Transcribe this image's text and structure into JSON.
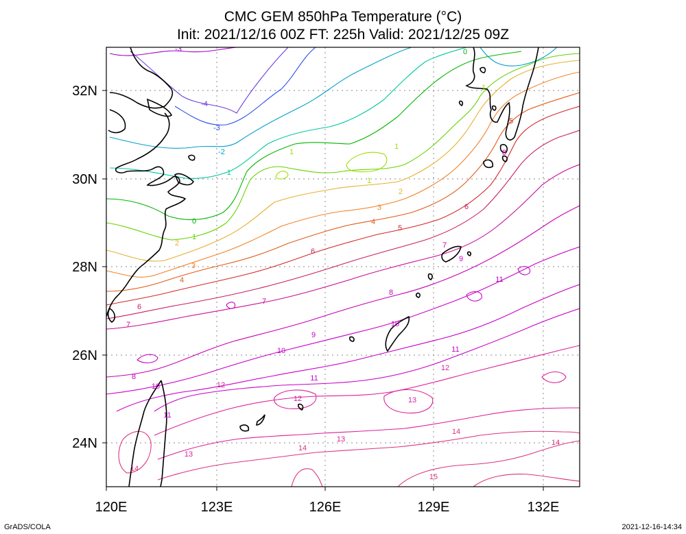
{
  "header": {
    "title": "CMC GEM 850hPa Temperature (°C)",
    "subtitle": "Init: 2021/12/16 00Z  FT: 225h  Valid: 2021/12/25 09Z"
  },
  "footer": {
    "left": "GrADS/COLA",
    "right": "2021-12-16-14:34"
  },
  "axes": {
    "lon_ticks": [
      "120E",
      "123E",
      "126E",
      "129E",
      "132E"
    ],
    "lat_ticks": [
      "32N",
      "30N",
      "28N",
      "26N",
      "24N"
    ]
  },
  "colors": {
    "c-3": "#a000c8",
    "c-2": "#6e3cdc",
    "c-1": "#2d50e6",
    "c0": "#00a0c8",
    "c1": "#00c8a0",
    "c2": "#00b400",
    "c3": "#64d200",
    "c4": "#a0dc00",
    "c5": "#e6af2d",
    "c6": "#f08228",
    "c7": "#e05a18",
    "c8": "#d22828",
    "c9": "#c81e64",
    "c10": "#c80a96",
    "c11": "#c800b4",
    "c12": "#c800c8",
    "c13": "#dc1e9b",
    "c14": "#dc327d"
  },
  "contour_labels": [
    {
      "text": "-3",
      "color": "#a000c8"
    },
    {
      "text": "-4",
      "color": "#6e3cdc"
    },
    {
      "text": "-3",
      "color": "#2d50e6"
    },
    {
      "text": "-2",
      "color": "#00a0c8"
    },
    {
      "text": "-1",
      "color": "#00c8a0"
    },
    {
      "text": "0",
      "color": "#00b400"
    },
    {
      "text": "0",
      "color": "#00b400"
    },
    {
      "text": "1",
      "color": "#64d200"
    },
    {
      "text": "1",
      "color": "#a0dc00"
    },
    {
      "text": "1",
      "color": "#a0dc00"
    },
    {
      "text": "1",
      "color": "#a0dc00"
    },
    {
      "text": "1",
      "color": "#a0dc00"
    },
    {
      "text": "2",
      "color": "#e6af2d"
    },
    {
      "text": "2",
      "color": "#e6af2d"
    },
    {
      "text": "3",
      "color": "#f08228"
    },
    {
      "text": "3",
      "color": "#f08228"
    },
    {
      "text": "4",
      "color": "#e05a18"
    },
    {
      "text": "4",
      "color": "#e05a18"
    },
    {
      "text": "5",
      "color": "#d22828"
    },
    {
      "text": "5",
      "color": "#d22828"
    },
    {
      "text": "6",
      "color": "#c81e64"
    },
    {
      "text": "6",
      "color": "#c81e64"
    },
    {
      "text": "6",
      "color": "#c81e64"
    },
    {
      "text": "7",
      "color": "#c80a96"
    },
    {
      "text": "7",
      "color": "#c80a96"
    },
    {
      "text": "7",
      "color": "#c80a96"
    },
    {
      "text": "8",
      "color": "#c800b4"
    },
    {
      "text": "8",
      "color": "#c800b4"
    },
    {
      "text": "8",
      "color": "#c800b4"
    },
    {
      "text": "9",
      "color": "#c800c8"
    },
    {
      "text": "9",
      "color": "#c800c8"
    },
    {
      "text": "10",
      "color": "#c800c8"
    },
    {
      "text": "10",
      "color": "#c800c8"
    },
    {
      "text": "10",
      "color": "#c800c8"
    },
    {
      "text": "11",
      "color": "#c800c8"
    },
    {
      "text": "11",
      "color": "#c800c8"
    },
    {
      "text": "11",
      "color": "#c800c8"
    },
    {
      "text": "11",
      "color": "#c800c8"
    },
    {
      "text": "12",
      "color": "#dc1e9b"
    },
    {
      "text": "12",
      "color": "#dc1e9b"
    },
    {
      "text": "12",
      "color": "#dc1e9b"
    },
    {
      "text": "13",
      "color": "#dc1e9b"
    },
    {
      "text": "13",
      "color": "#dc1e9b"
    },
    {
      "text": "13",
      "color": "#dc1e9b"
    },
    {
      "text": "14",
      "color": "#dc327d"
    },
    {
      "text": "14",
      "color": "#dc327d"
    },
    {
      "text": "14",
      "color": "#dc327d"
    },
    {
      "text": "14",
      "color": "#dc327d"
    },
    {
      "text": "15",
      "color": "#dc327d"
    }
  ]
}
